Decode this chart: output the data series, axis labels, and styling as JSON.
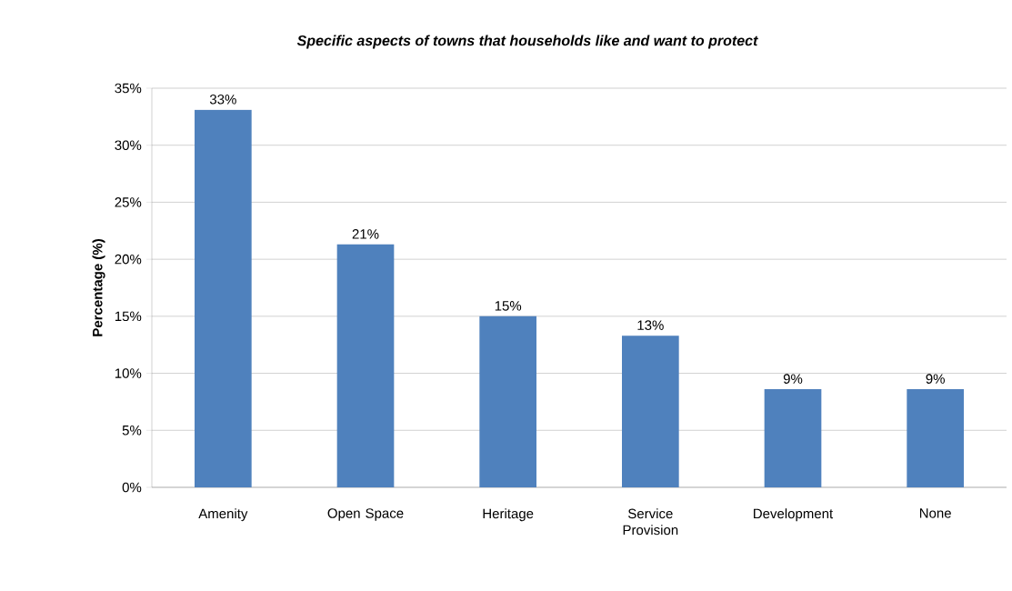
{
  "chart_data": {
    "type": "bar",
    "title": "Specific aspects of towns that households like and want to protect",
    "ylabel": "Percentage (%)",
    "categories": [
      "Amenity",
      "Open Space",
      "Heritage",
      "Service Provision",
      "Development",
      "None"
    ],
    "values": [
      33.1,
      21.3,
      15.0,
      13.3,
      8.6,
      8.6
    ],
    "value_labels": [
      "33%",
      "21%",
      "15%",
      "13%",
      "9%",
      "9%"
    ],
    "color": "#4f81bd",
    "ylim": [
      0,
      35
    ],
    "yticks": [
      {
        "value": 0,
        "label": "0%"
      },
      {
        "value": 5,
        "label": "5%"
      },
      {
        "value": 10,
        "label": "10%"
      },
      {
        "value": 15,
        "label": "15%"
      },
      {
        "value": 20,
        "label": "20%"
      },
      {
        "value": 25,
        "label": "25%"
      },
      {
        "value": 30,
        "label": "30%"
      },
      {
        "value": 35,
        "label": "35%"
      }
    ],
    "grid": "y"
  }
}
